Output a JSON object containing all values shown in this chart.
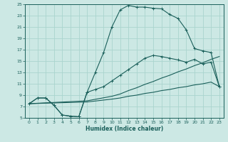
{
  "xlabel": "Humidex (Indice chaleur)",
  "xlim": [
    -0.5,
    23.5
  ],
  "ylim": [
    5,
    25
  ],
  "xticks": [
    0,
    1,
    2,
    3,
    4,
    5,
    6,
    7,
    8,
    9,
    10,
    11,
    12,
    13,
    14,
    15,
    16,
    17,
    18,
    19,
    20,
    21,
    22,
    23
  ],
  "yticks": [
    5,
    7,
    9,
    11,
    13,
    15,
    17,
    19,
    21,
    23,
    25
  ],
  "bg_color": "#cce8e4",
  "line_color": "#1a5f5a",
  "grid_color": "#aad4ce",
  "series_high_x": [
    0,
    1,
    2,
    3,
    4,
    5,
    6,
    7,
    8,
    9,
    10,
    11,
    12,
    13,
    14,
    15,
    16,
    17,
    18,
    19,
    20,
    21,
    22,
    23
  ],
  "series_high_y": [
    7.5,
    8.5,
    8.5,
    7.2,
    5.5,
    5.3,
    5.2,
    9.5,
    13.0,
    16.5,
    21.0,
    24.0,
    24.8,
    24.5,
    24.5,
    24.3,
    24.2,
    23.2,
    22.5,
    20.5,
    17.2,
    16.8,
    16.5,
    10.5
  ],
  "series_mid_x": [
    0,
    1,
    2,
    3,
    4,
    5,
    6,
    7,
    8,
    9,
    10,
    11,
    12,
    13,
    14,
    15,
    16,
    17,
    18,
    19,
    20,
    21,
    22,
    23
  ],
  "series_mid_y": [
    7.5,
    8.5,
    8.5,
    7.2,
    5.5,
    5.3,
    5.2,
    9.5,
    10.0,
    10.5,
    11.5,
    12.5,
    13.5,
    14.5,
    15.5,
    16.0,
    15.8,
    15.5,
    15.2,
    14.8,
    15.3,
    14.5,
    14.8,
    10.5
  ],
  "series_diag1_x": [
    0,
    7,
    10,
    11,
    12,
    13,
    14,
    15,
    16,
    17,
    18,
    19,
    20,
    21,
    22,
    23
  ],
  "series_diag1_y": [
    7.5,
    8.0,
    8.8,
    9.2,
    9.8,
    10.3,
    10.9,
    11.4,
    12.0,
    12.5,
    13.1,
    13.6,
    14.2,
    14.7,
    15.3,
    15.8
  ],
  "series_diag2_x": [
    0,
    7,
    10,
    11,
    12,
    13,
    14,
    15,
    16,
    17,
    18,
    19,
    20,
    21,
    22,
    23
  ],
  "series_diag2_y": [
    7.5,
    7.8,
    8.3,
    8.5,
    8.8,
    9.0,
    9.3,
    9.5,
    9.8,
    10.0,
    10.3,
    10.5,
    10.8,
    11.0,
    11.3,
    10.5
  ]
}
